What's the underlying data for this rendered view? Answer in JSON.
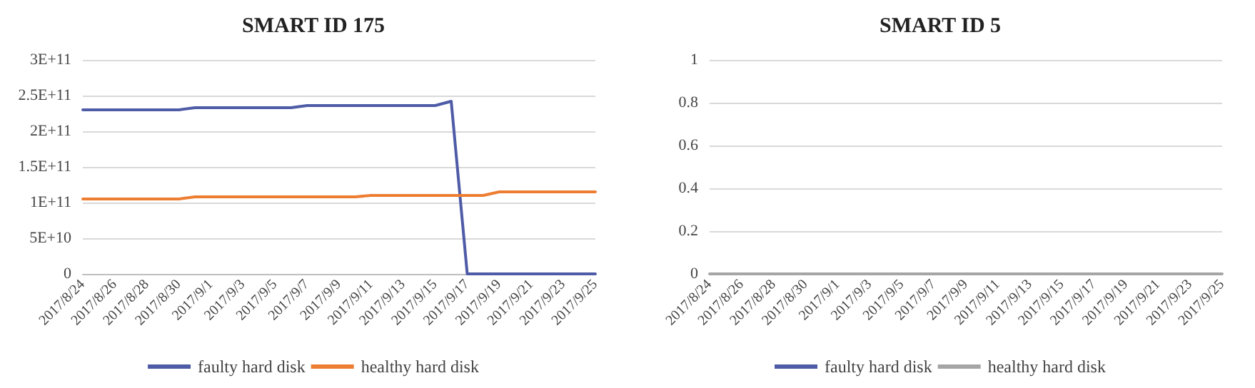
{
  "chart_data": [
    {
      "type": "line",
      "title": "SMART ID 175",
      "categories": [
        "2017/8/24",
        null,
        "2017/8/26",
        null,
        "2017/8/28",
        null,
        "2017/8/30",
        null,
        "2017/9/1",
        null,
        "2017/9/3",
        null,
        "2017/9/5",
        null,
        "2017/9/7",
        null,
        "2017/9/9",
        null,
        "2017/9/11",
        null,
        "2017/9/13",
        null,
        "2017/9/15",
        null,
        "2017/9/17",
        null,
        "2017/9/19",
        null,
        "2017/9/21",
        null,
        "2017/9/23",
        null,
        "2017/9/25"
      ],
      "series": [
        {
          "name": "faulty hard disk",
          "color": "#4e5ba6",
          "values": [
            230000000000,
            230000000000,
            230000000000,
            230000000000,
            230000000000,
            230000000000,
            230000000000,
            233000000000,
            233000000000,
            233000000000,
            233000000000,
            233000000000,
            233000000000,
            233000000000,
            236000000000,
            236000000000,
            236000000000,
            236000000000,
            236000000000,
            236000000000,
            236000000000,
            236000000000,
            236000000000,
            242000000000,
            0,
            0,
            0,
            0,
            0,
            0,
            0,
            0,
            0
          ]
        },
        {
          "name": "healthy hard disk",
          "color": "#ed7d31",
          "values": [
            105000000000,
            105000000000,
            105000000000,
            105000000000,
            105000000000,
            105000000000,
            105000000000,
            108000000000,
            108000000000,
            108000000000,
            108000000000,
            108000000000,
            108000000000,
            108000000000,
            108000000000,
            108000000000,
            108000000000,
            108000000000,
            110000000000,
            110000000000,
            110000000000,
            110000000000,
            110000000000,
            110000000000,
            110000000000,
            110000000000,
            115000000000,
            115000000000,
            115000000000,
            115000000000,
            115000000000,
            115000000000,
            115000000000
          ]
        }
      ],
      "ylim": [
        0,
        300000000000
      ],
      "yticks": [
        {
          "value": 0,
          "label": "0"
        },
        {
          "value": 50000000000,
          "label": "5E+10"
        },
        {
          "value": 100000000000,
          "label": "1E+11"
        },
        {
          "value": 150000000000,
          "label": "1.5E+11"
        },
        {
          "value": 200000000000,
          "label": "2E+11"
        },
        {
          "value": 250000000000,
          "label": "2.5E+11"
        },
        {
          "value": 300000000000,
          "label": "3E+11"
        }
      ],
      "grid": "y",
      "legend": "bottom",
      "marker": "none"
    },
    {
      "type": "line",
      "title": "SMART ID 5",
      "categories": [
        "2017/8/24",
        null,
        "2017/8/26",
        null,
        "2017/8/28",
        null,
        "2017/8/30",
        null,
        "2017/9/1",
        null,
        "2017/9/3",
        null,
        "2017/9/5",
        null,
        "2017/9/7",
        null,
        "2017/9/9",
        null,
        "2017/9/11",
        null,
        "2017/9/13",
        null,
        "2017/9/15",
        null,
        "2017/9/17",
        null,
        "2017/9/19",
        null,
        "2017/9/21",
        null,
        "2017/9/23",
        null,
        "2017/9/25"
      ],
      "series": [
        {
          "name": "faulty hard disk",
          "color": "#4e5ba6",
          "values": [
            null,
            null,
            null,
            null,
            null,
            null,
            null,
            null,
            null,
            null,
            null,
            null,
            null,
            null,
            null,
            null,
            null,
            null,
            null,
            null,
            null,
            null,
            null,
            null,
            null,
            null,
            null,
            null,
            null,
            null,
            null,
            null,
            null
          ]
        },
        {
          "name": "healthy hard disk",
          "color": "#a5a5a5",
          "values": [
            0,
            0,
            0,
            0,
            0,
            0,
            0,
            0,
            0,
            0,
            0,
            0,
            0,
            0,
            0,
            0,
            0,
            0,
            0,
            0,
            0,
            0,
            0,
            0,
            0,
            0,
            0,
            0,
            0,
            0,
            0,
            0,
            0
          ]
        }
      ],
      "ylim": [
        0,
        1
      ],
      "yticks": [
        0,
        0.2,
        0.4,
        0.6,
        0.8,
        1
      ],
      "grid": "y",
      "legend": "bottom",
      "marker": "none"
    }
  ]
}
